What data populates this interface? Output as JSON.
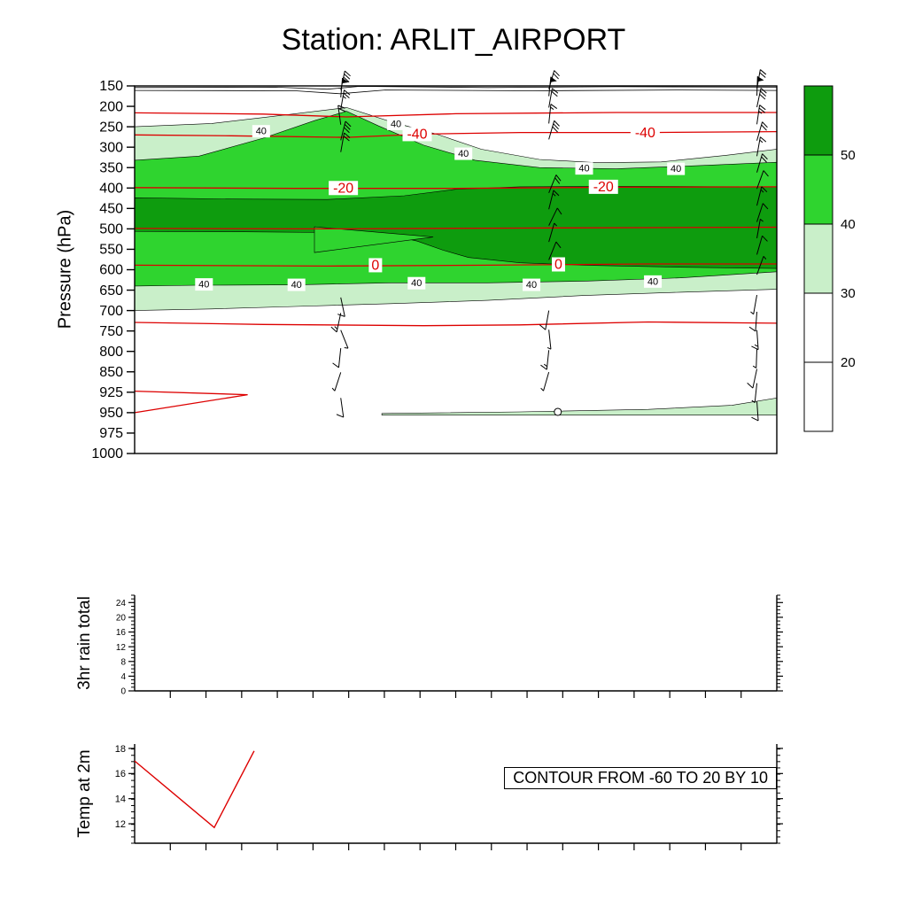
{
  "title": "Station: ARLIT_AIRPORT",
  "panels": {
    "main": {
      "ylabel": "Pressure (hPa)"
    },
    "rain": {
      "ylabel": "3hr rain total"
    },
    "temp": {
      "ylabel": "Temp at 2m",
      "annotation": "CONTOUR FROM -60 TO 20 BY 10"
    }
  },
  "colorbar": {
    "boundary_labels": [
      "50",
      "40",
      "30",
      "20"
    ],
    "cell_colors_top_to_bottom": [
      "#0e9c0e",
      "#2fd42f",
      "#c9efc9",
      "#ffffff",
      "#ffffff"
    ]
  },
  "chart_data": [
    {
      "type": "heatmap",
      "name": "relative-humidity-time-pressure-section",
      "ylabel": "Pressure (hPa)",
      "y_ticks": [
        150,
        200,
        250,
        300,
        350,
        400,
        450,
        500,
        550,
        600,
        650,
        700,
        750,
        800,
        850,
        925,
        950,
        975,
        1000
      ],
      "x_intervals": 18,
      "fills": [
        {
          "level": 30,
          "color": "#c9efc9",
          "points": [
            [
              0,
              250
            ],
            [
              0.12,
              242
            ],
            [
              0.25,
              218
            ],
            [
              0.33,
              203
            ],
            [
              0.4,
              238
            ],
            [
              0.47,
              268
            ],
            [
              0.54,
              305
            ],
            [
              0.63,
              330
            ],
            [
              0.72,
              338
            ],
            [
              0.82,
              336
            ],
            [
              0.92,
              320
            ],
            [
              1,
              305
            ],
            [
              1,
              648
            ],
            [
              0.85,
              655
            ],
            [
              0.7,
              663
            ],
            [
              0.55,
              675
            ],
            [
              0.4,
              683
            ],
            [
              0.25,
              690
            ],
            [
              0.12,
              696
            ],
            [
              0,
              700
            ]
          ]
        },
        {
          "level": 40,
          "color": "#2fd42f",
          "points": [
            [
              0,
              332
            ],
            [
              0.1,
              322
            ],
            [
              0.2,
              278
            ],
            [
              0.28,
              235
            ],
            [
              0.33,
              212
            ],
            [
              0.38,
              248
            ],
            [
              0.45,
              295
            ],
            [
              0.53,
              332
            ],
            [
              0.63,
              350
            ],
            [
              0.75,
              353
            ],
            [
              0.88,
              345
            ],
            [
              1,
              337
            ],
            [
              1,
              605
            ],
            [
              0.85,
              620
            ],
            [
              0.7,
              628
            ],
            [
              0.55,
              632
            ],
            [
              0.4,
              632
            ],
            [
              0.25,
              637
            ],
            [
              0.1,
              638
            ],
            [
              0,
              640
            ]
          ]
        },
        {
          "level": 50,
          "color": "#0e9c0e",
          "points": [
            [
              0,
              424
            ],
            [
              0.15,
              427
            ],
            [
              0.3,
              428
            ],
            [
              0.42,
              419
            ],
            [
              0.5,
              403
            ],
            [
              0.6,
              397
            ],
            [
              0.75,
              396
            ],
            [
              1,
              397
            ],
            [
              1,
              597
            ],
            [
              0.85,
              594
            ],
            [
              0.7,
              589
            ],
            [
              0.6,
              583
            ],
            [
              0.52,
              570
            ],
            [
              0.48,
              552
            ],
            [
              0.44,
              530
            ],
            [
              0.4,
              516
            ],
            [
              0.3,
              509
            ],
            [
              0.15,
              507
            ],
            [
              0,
              506
            ]
          ]
        },
        {
          "level": 40,
          "color": "#2fd42f",
          "points": [
            [
              0.28,
              495
            ],
            [
              0.465,
              520
            ],
            [
              0.28,
              558
            ]
          ]
        },
        {
          "level": 30,
          "color": "#c9efc9",
          "points": [
            [
              0.385,
              951
            ],
            [
              0.6,
              949
            ],
            [
              0.8,
              946
            ],
            [
              0.93,
              941
            ],
            [
              1,
              932
            ],
            [
              1,
              953
            ],
            [
              0.385,
              953
            ]
          ]
        }
      ],
      "black_contours": [
        [
          [
            0,
            154
          ],
          [
            0.22,
            153
          ],
          [
            0.3,
            158
          ],
          [
            0.35,
            151
          ],
          [
            0.55,
            154
          ],
          [
            0.75,
            152
          ],
          [
            1,
            153
          ]
        ],
        [
          [
            0,
            161
          ],
          [
            0.25,
            162
          ],
          [
            0.32,
            169
          ],
          [
            0.39,
            160
          ],
          [
            0.62,
            162
          ],
          [
            0.85,
            160
          ],
          [
            1,
            161
          ]
        ]
      ],
      "rh_contour_labels": [
        {
          "text": "40",
          "x": 0.197,
          "p": 261
        },
        {
          "text": "40",
          "x": 0.407,
          "p": 243
        },
        {
          "text": "40",
          "x": 0.512,
          "p": 316
        },
        {
          "text": "40",
          "x": 0.7,
          "p": 352
        },
        {
          "text": "40",
          "x": 0.843,
          "p": 353
        },
        {
          "text": "40",
          "x": 0.108,
          "p": 636
        },
        {
          "text": "40",
          "x": 0.252,
          "p": 637
        },
        {
          "text": "40",
          "x": 0.439,
          "p": 633
        },
        {
          "text": "40",
          "x": 0.618,
          "p": 637
        },
        {
          "text": "40",
          "x": 0.807,
          "p": 629
        }
      ],
      "red_temp_contours": [
        {
          "value": -50,
          "points": [
            [
              0,
              216
            ],
            [
              0.2,
              219
            ],
            [
              0.33,
              226
            ],
            [
              0.5,
              218
            ],
            [
              0.75,
              215
            ],
            [
              1,
              215
            ]
          ],
          "labels": []
        },
        {
          "value": -40,
          "points": [
            [
              0,
              270
            ],
            [
              0.15,
              272
            ],
            [
              0.33,
              276
            ],
            [
              0.45,
              268
            ],
            [
              0.6,
              264
            ],
            [
              0.8,
              264
            ],
            [
              1,
              262
            ]
          ],
          "labels": [
            [
              0.44,
              268
            ],
            [
              0.795,
              264
            ]
          ]
        },
        {
          "value": -20,
          "points": [
            [
              0,
              399
            ],
            [
              0.25,
              401
            ],
            [
              0.5,
              401
            ],
            [
              0.75,
              398
            ],
            [
              1,
              397
            ]
          ],
          "labels": [
            [
              0.325,
              400
            ],
            [
              0.73,
              397
            ]
          ]
        },
        {
          "value": -10,
          "points": [
            [
              0,
              499
            ],
            [
              0.3,
              500
            ],
            [
              0.6,
              498
            ],
            [
              1,
              496
            ]
          ],
          "labels": []
        },
        {
          "value": 0,
          "points": [
            [
              0,
              589
            ],
            [
              0.3,
              591
            ],
            [
              0.55,
              589
            ],
            [
              0.8,
              586
            ],
            [
              1,
              586
            ]
          ],
          "labels": [
            [
              0.375,
              589
            ],
            [
              0.66,
              587
            ]
          ]
        },
        {
          "value": 10,
          "points": [
            [
              0,
              729
            ],
            [
              0.2,
              734
            ],
            [
              0.45,
              737
            ],
            [
              0.6,
              735
            ],
            [
              0.8,
              728
            ],
            [
              1,
              731
            ]
          ],
          "labels": []
        },
        {
          "value": 20,
          "points": [
            [
              0,
              921
            ],
            [
              0.176,
              928
            ],
            [
              0,
              950
            ]
          ],
          "labels": []
        }
      ],
      "red_color": "#dd0000",
      "marker_circle": {
        "x": 0.659,
        "p": 949
      },
      "wind_columns": [
        {
          "x": 0.321,
          "barbs": [
            {
              "p": 160,
              "a": 12,
              "f": 3
            },
            {
              "p": 178,
              "a": 5,
              "flag": 1
            },
            {
              "p": 207,
              "a": 10,
              "f": 2,
              "h": 1
            },
            {
              "p": 245,
              "a": -8,
              "f": 2
            },
            {
              "p": 283,
              "a": 14,
              "f": 3
            },
            {
              "p": 312,
              "a": 10,
              "f": 2
            },
            {
              "p": 668,
              "a": 168,
              "f": 1
            },
            {
              "p": 706,
              "a": 192,
              "f": 1,
              "h": 1
            },
            {
              "p": 748,
              "a": 158,
              "h": 1
            },
            {
              "p": 792,
              "a": 186,
              "f": 1
            },
            {
              "p": 852,
              "a": 198,
              "h": 1
            },
            {
              "p": 932,
              "a": 172,
              "f": 1
            }
          ]
        },
        {
          "x": 0.645,
          "barbs": [
            {
              "p": 158,
              "a": 16,
              "f": 2
            },
            {
              "p": 175,
              "a": 6,
              "flag": 1
            },
            {
              "p": 203,
              "a": 10,
              "f": 2
            },
            {
              "p": 242,
              "a": 6,
              "f": 1,
              "h": 1
            },
            {
              "p": 281,
              "a": 16,
              "f": 3
            },
            {
              "p": 412,
              "a": 22,
              "f": 2
            },
            {
              "p": 452,
              "a": 14,
              "f": 1,
              "h": 1
            },
            {
              "p": 492,
              "a": 26,
              "f": 1
            },
            {
              "p": 532,
              "a": 16,
              "h": 1
            },
            {
              "p": 576,
              "a": 22,
              "f": 1
            },
            {
              "p": 700,
              "a": 190,
              "f": 1
            },
            {
              "p": 747,
              "a": 174,
              "h": 1
            },
            {
              "p": 797,
              "a": 186,
              "f": 1,
              "h": 1
            },
            {
              "p": 851,
              "a": 196,
              "h": 1
            }
          ]
        },
        {
          "x": 0.969,
          "barbs": [
            {
              "p": 157,
              "a": 10,
              "f": 2
            },
            {
              "p": 174,
              "a": 2,
              "flag": 1
            },
            {
              "p": 202,
              "a": 12,
              "f": 3
            },
            {
              "p": 244,
              "a": 8,
              "f": 2,
              "h": 1
            },
            {
              "p": 284,
              "a": 16,
              "f": 2
            },
            {
              "p": 322,
              "a": 10,
              "f": 1,
              "h": 1
            },
            {
              "p": 362,
              "a": 16,
              "f": 2
            },
            {
              "p": 402,
              "a": 20,
              "f": 1
            },
            {
              "p": 443,
              "a": 14,
              "f": 1,
              "h": 1
            },
            {
              "p": 483,
              "a": 18,
              "f": 1
            },
            {
              "p": 523,
              "a": 10,
              "h": 1
            },
            {
              "p": 563,
              "a": 16,
              "f": 1
            },
            {
              "p": 612,
              "a": 20,
              "h": 1
            },
            {
              "p": 662,
              "a": 190,
              "h": 1
            },
            {
              "p": 703,
              "a": 184,
              "f": 1
            },
            {
              "p": 748,
              "a": 176,
              "f": 1,
              "h": 1
            },
            {
              "p": 793,
              "a": 182,
              "h": 1
            },
            {
              "p": 843,
              "a": 192,
              "f": 1
            },
            {
              "p": 892,
              "a": 186,
              "h": 1
            },
            {
              "p": 936,
              "a": 176,
              "f": 1
            }
          ]
        }
      ]
    },
    {
      "type": "line",
      "name": "rain-3hr-total",
      "ylabel": "3hr rain total",
      "y_ticks": [
        0,
        4,
        8,
        12,
        16,
        20,
        24
      ],
      "y_minor_step": 1,
      "y_range": [
        0,
        26
      ],
      "x_intervals": 18,
      "series": []
    },
    {
      "type": "line",
      "name": "temp-at-2m",
      "ylabel": "Temp at 2m",
      "y_ticks": [
        12,
        14,
        16,
        18
      ],
      "y_minor_step": 0.5,
      "y_range": [
        10.45,
        18.35
      ],
      "x_intervals": 18,
      "annotation": "CONTOUR FROM -60 TO 20 BY 10",
      "series": [
        {
          "name": "temp_2m",
          "color": "#dd0000",
          "points": [
            [
              0,
              17.0
            ],
            [
              0.124,
              11.7
            ],
            [
              0.186,
              17.8
            ]
          ]
        }
      ]
    }
  ]
}
